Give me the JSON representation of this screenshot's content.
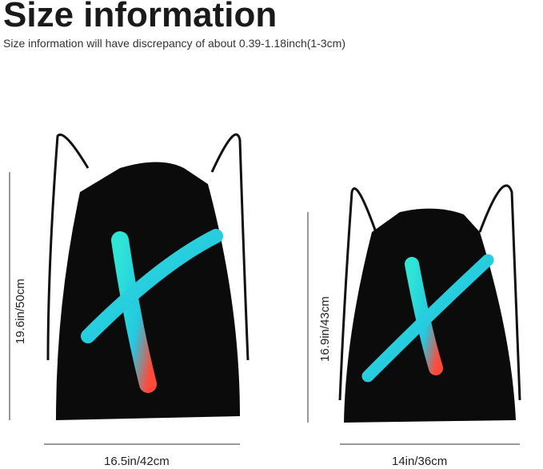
{
  "header": {
    "title": "Size information",
    "subtitle": "Size information will have discrepancy of about 0.39-1.18inch(1-3cm)"
  },
  "large_bag": {
    "height": "19.6in/50cm",
    "width": "16.5in/42cm"
  },
  "small_bag": {
    "height": "16.9in/43cm",
    "width": "14in/36cm"
  }
}
